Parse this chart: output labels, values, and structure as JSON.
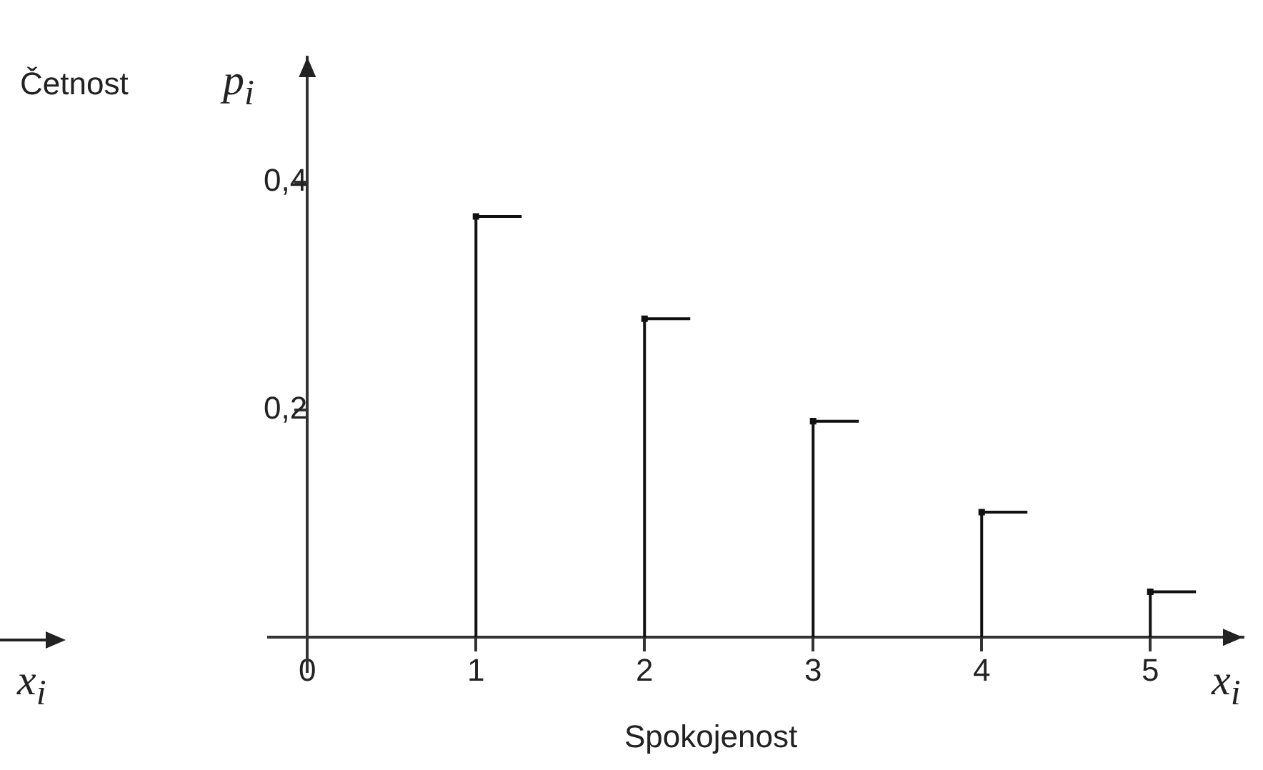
{
  "chart_data": {
    "type": "lollipop",
    "x": [
      1,
      2,
      3,
      4,
      5
    ],
    "values": [
      0.37,
      0.28,
      0.19,
      0.11,
      0.04
    ],
    "color": "#111111",
    "xlabel": "Spokojenost",
    "ylabel": "Četnost",
    "annotations": [
      "p$_{i}$",
      "x$_{i}$",
      "x$_{i}$"
    ],
    "xlim": [
      -0.23,
      5.55
    ],
    "ylim": [
      -0.03,
      0.51
    ],
    "xticks": [
      0,
      1,
      2,
      3,
      4,
      5
    ],
    "yticks": [
      {
        "value": 0.2,
        "label": "0,2"
      },
      {
        "value": 0.4,
        "label": "0,4"
      }
    ],
    "grid": false,
    "legend": false,
    "marker": "square"
  }
}
